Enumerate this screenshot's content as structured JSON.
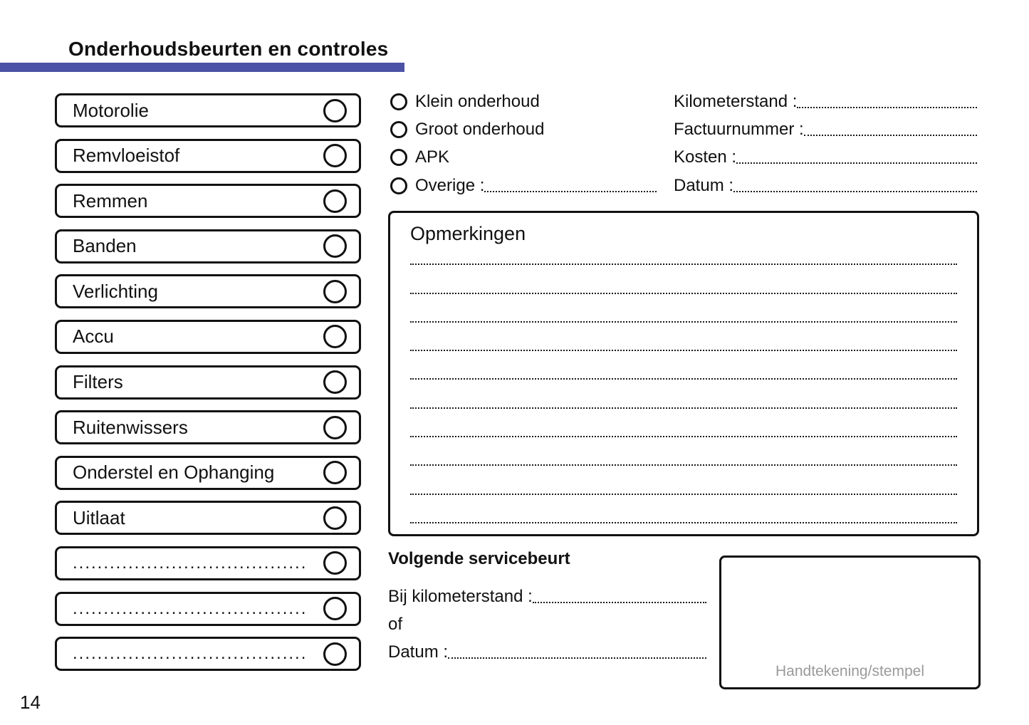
{
  "header": {
    "title": "Onderhoudsbeurten en controles",
    "accent_color": "#4c52a5"
  },
  "checklist": {
    "items": [
      "Motorolie",
      "Remvloeistof",
      "Remmen",
      "Banden",
      "Verlichting",
      "Accu",
      "Filters",
      "Ruitenwissers",
      "Onderstel en Ophanging",
      "Uitlaat",
      "......................................",
      "......................................",
      "......................................"
    ]
  },
  "service_type": {
    "options": [
      "Klein onderhoud",
      "Groot onderhoud",
      "APK",
      "Overige :"
    ]
  },
  "service_fields": {
    "labels": [
      "Kilometerstand :",
      "Factuurnummer :",
      "Kosten :",
      "Datum :"
    ]
  },
  "remarks": {
    "title": "Opmerkingen",
    "line_count": 10
  },
  "next_service": {
    "title": "Volgende servicebeurt",
    "km_label": "Bij kilometerstand :",
    "or_label": "of",
    "date_label": "Datum :"
  },
  "signature": {
    "label": "Handtekening/stempel",
    "label_color": "#9a9a9a"
  },
  "footer": {
    "page_number": "14"
  }
}
